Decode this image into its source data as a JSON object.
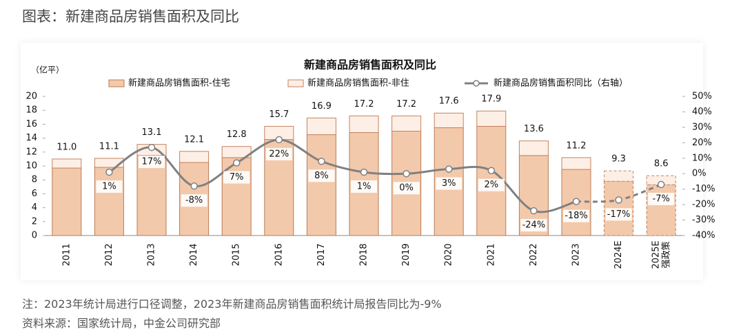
{
  "title": "图表：新建商品房销售面积及同比",
  "chart_data": {
    "type": "bar",
    "title": "新建商品房销售面积及同比",
    "y_label": "（亿平）",
    "categories": [
      "2011",
      "2012",
      "2013",
      "2014",
      "2015",
      "2016",
      "2017",
      "2018",
      "2019",
      "2020",
      "2021",
      "2022",
      "2023",
      "2024E",
      "2025E 强政策"
    ],
    "dashed": [
      false,
      false,
      false,
      false,
      false,
      false,
      false,
      false,
      false,
      false,
      false,
      false,
      false,
      true,
      true
    ],
    "series": [
      {
        "name": "新建商品房销售面积-住宅",
        "type": "bar",
        "color": "#f3c9ab",
        "stroke": "#b97a55",
        "values": [
          9.7,
          9.8,
          11.5,
          10.5,
          11.2,
          13.8,
          14.5,
          14.8,
          15.0,
          15.5,
          15.7,
          11.5,
          9.5,
          7.8,
          7.3
        ]
      },
      {
        "name": "新建商品房销售面积-非住",
        "type": "bar",
        "color": "#fdefe5",
        "stroke": "#c4825d",
        "values": [
          1.3,
          1.3,
          1.6,
          1.6,
          1.6,
          1.9,
          2.4,
          2.4,
          2.2,
          2.1,
          2.2,
          2.1,
          1.7,
          1.5,
          1.3
        ]
      },
      {
        "name": "新建商品房销售面积同比（右轴）",
        "type": "line",
        "axis": "y2",
        "color": "#808080",
        "values": [
          null,
          1,
          17,
          -8,
          7,
          22,
          8,
          1,
          0,
          3,
          2,
          -24,
          -18,
          -17,
          -7
        ],
        "value_labels": [
          null,
          "1%",
          "17%",
          "-8%",
          "7%",
          "22%",
          "8%",
          "1%",
          "0%",
          "3%",
          "2%",
          "-24%",
          "-18%",
          "-17%",
          "-7%"
        ]
      }
    ],
    "totals": [
      11.0,
      11.1,
      13.1,
      12.1,
      12.8,
      15.7,
      16.9,
      17.2,
      17.2,
      17.6,
      17.9,
      13.6,
      11.2,
      9.3,
      8.6
    ],
    "total_labels": [
      "11.0",
      "11.1",
      "13.1",
      "12.1",
      "12.8",
      "15.7",
      "16.9",
      "17.2",
      "17.2",
      "17.6",
      "17.9",
      "13.6",
      "11.2",
      "9.3",
      "8.6"
    ],
    "ylim": [
      0,
      20
    ],
    "yticks": [
      0,
      2,
      4,
      6,
      8,
      10,
      12,
      14,
      16,
      18,
      20
    ],
    "y2lim": [
      -40,
      50
    ],
    "y2ticks": [
      {
        "value": -40,
        "label": "-40%"
      },
      {
        "value": -30,
        "label": "-30%"
      },
      {
        "value": -20,
        "label": "-20%"
      },
      {
        "value": -10,
        "label": "-10%"
      },
      {
        "value": 0,
        "label": "0%"
      },
      {
        "value": 10,
        "label": "10%"
      },
      {
        "value": 20,
        "label": "20%"
      },
      {
        "value": 30,
        "label": "30%"
      },
      {
        "value": 40,
        "label": "40%"
      },
      {
        "value": 50,
        "label": "50%"
      }
    ],
    "grid": false
  },
  "notes": [
    "注：2023年统计局进行口径调整，2023年新建商品房销售面积统计局报告同比为-9%",
    "资料来源：国家统计局，中金公司研究部"
  ]
}
